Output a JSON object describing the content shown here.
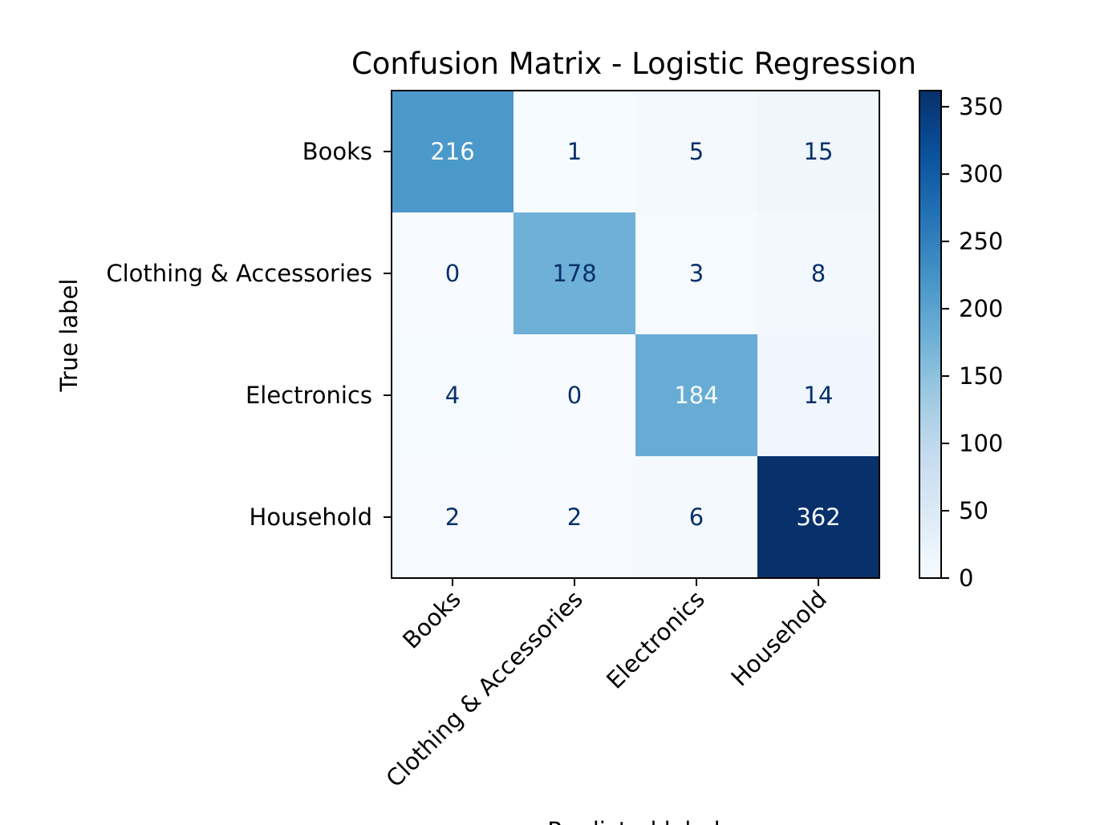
{
  "chart_data": {
    "type": "heatmap",
    "title": "Confusion Matrix - Logistic Regression",
    "ylabel": "True label",
    "xlabel": "Predicted label",
    "rows": [
      "Books",
      "Clothing & Accessories",
      "Electronics",
      "Household"
    ],
    "columns": [
      "Books",
      "Clothing & Accessories",
      "Electronics",
      "Household"
    ],
    "values": [
      [
        216,
        1,
        5,
        15
      ],
      [
        0,
        178,
        3,
        8
      ],
      [
        4,
        0,
        184,
        14
      ],
      [
        2,
        2,
        6,
        362
      ]
    ],
    "colormap": "Blues",
    "colorbar": {
      "range": [
        0,
        362
      ],
      "ticks": [
        0,
        50,
        100,
        150,
        200,
        250,
        300,
        350
      ]
    },
    "colors": {
      "low": "#f7fbff",
      "high": "#08306b",
      "text_dark": "#08306b",
      "text_light": "#f7fbff"
    }
  }
}
